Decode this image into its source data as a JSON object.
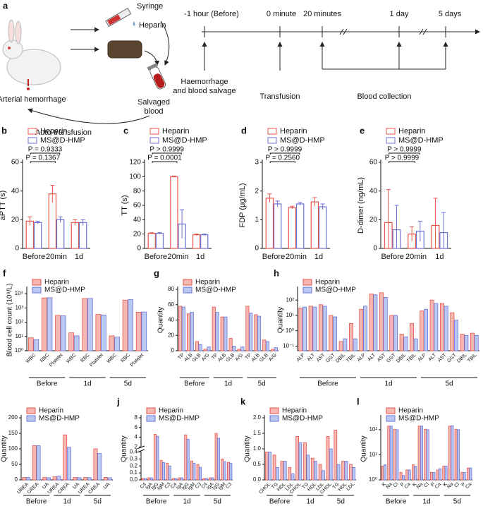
{
  "schematic": {
    "panel": "a",
    "syringe": "Syringe",
    "heparin": "Heparin",
    "arterial_hemorrhage": "Arterial hemorrhage",
    "salvaged_blood": [
      "Salvaged",
      "blood"
    ],
    "auto_transfusion": "Auto-transfusion",
    "timeline": [
      "-1 hour (Before)",
      "0 minute",
      "20 minutes",
      "1 day",
      "5 days"
    ],
    "haemorrhage": [
      "Haemorrhage",
      "and blood salvage"
    ],
    "transfusion": "Transfusion",
    "blood_collection": "Blood collection"
  },
  "chart_data": [
    {
      "type": "bar",
      "panel": "b",
      "ylabel": "aPTT (s)",
      "categories": [
        "Before",
        "20min",
        "1d"
      ],
      "series": [
        {
          "name": "Heparin",
          "color": "#e8544a",
          "fill": "#ffffff",
          "values": [
            19,
            38,
            18
          ],
          "errors": [
            3,
            6,
            2
          ]
        },
        {
          "name": "MS@D-HMP",
          "color": "#6c72d6",
          "fill": "#ffffff",
          "values": [
            18,
            20,
            18
          ],
          "errors": [
            1,
            2,
            2
          ]
        }
      ],
      "ylim": [
        0,
        60
      ],
      "yticks": [
        0,
        20,
        40,
        60
      ],
      "annotations": [
        "P = 0.9333",
        "P = 0.1367"
      ]
    },
    {
      "type": "bar",
      "panel": "c",
      "ylabel": "TT (s)",
      "categories": [
        "Before",
        "20min",
        "1d"
      ],
      "series": [
        {
          "name": "Heparin",
          "color": "#e8544a",
          "fill": "#ffffff",
          "values": [
            21,
            100,
            19
          ],
          "errors": [
            1,
            1,
            1
          ]
        },
        {
          "name": "MS@D-HMP",
          "color": "#6c72d6",
          "fill": "#ffffff",
          "values": [
            21,
            34,
            19
          ],
          "errors": [
            1,
            20,
            1
          ]
        }
      ],
      "ylim": [
        0,
        120
      ],
      "yticks": [
        0,
        20,
        40,
        60,
        80,
        100,
        120
      ],
      "annotations": [
        "P > 0.9999",
        "P = 0.0001"
      ]
    },
    {
      "type": "bar",
      "panel": "d",
      "ylabel": "FDP (μg/mL)",
      "categories": [
        "Before",
        "20min",
        "1d"
      ],
      "series": [
        {
          "name": "Heparin",
          "color": "#e8544a",
          "fill": "#ffffff",
          "values": [
            1.75,
            1.42,
            1.62
          ],
          "errors": [
            0.15,
            0.05,
            0.15
          ]
        },
        {
          "name": "MS@D-HMP",
          "color": "#6c72d6",
          "fill": "#ffffff",
          "values": [
            1.55,
            1.55,
            1.45
          ],
          "errors": [
            0.1,
            0.05,
            0.1
          ]
        }
      ],
      "ylim": [
        0,
        3
      ],
      "yticks": [
        0,
        1,
        2,
        3
      ],
      "annotations": [
        "P > 0.9999",
        "P = 0.2560"
      ]
    },
    {
      "type": "bar",
      "panel": "e",
      "ylabel": "D-dimer (ng/mL)",
      "categories": [
        "Before",
        "20min",
        "1d"
      ],
      "series": [
        {
          "name": "Heparin",
          "color": "#e8544a",
          "fill": "#ffffff",
          "values": [
            18,
            10,
            16
          ],
          "errors": [
            23,
            5,
            19
          ]
        },
        {
          "name": "MS@D-HMP",
          "color": "#6c72d6",
          "fill": "#ffffff",
          "values": [
            13,
            12,
            11
          ],
          "errors": [
            17,
            7,
            14
          ]
        }
      ],
      "ylim": [
        0,
        60
      ],
      "yticks": [
        0,
        20,
        40,
        60
      ],
      "annotations": [
        "P > 0.9999",
        "P > 0.9999"
      ]
    },
    {
      "type": "bar",
      "panel": "f",
      "ylabel": "Blood cell count (10⁹/L)",
      "log": true,
      "groups": [
        "Before",
        "1d",
        "5d"
      ],
      "categories": [
        "WBC",
        "RBC",
        "Platelet",
        "WBC",
        "RBC",
        "Platelet",
        "WBC",
        "RBC",
        "Platelet"
      ],
      "series": [
        {
          "name": "Heparin",
          "color": "#e8544a",
          "fill": "#f6b8b2",
          "values": [
            8,
            5000,
            300,
            18,
            4500,
            350,
            11,
            3500,
            500
          ]
        },
        {
          "name": "MS@D-HMP",
          "color": "#6c72d6",
          "fill": "#b9c9f2",
          "values": [
            6,
            5200,
            280,
            11,
            4600,
            320,
            9,
            3800,
            520
          ]
        }
      ],
      "ylim": [
        1,
        20000
      ],
      "yticks": [
        {
          "value": 1,
          "label": "10⁰"
        },
        {
          "value": 10,
          "label": "10¹"
        },
        {
          "value": 100,
          "label": "10²"
        },
        {
          "value": 1000,
          "label": "10³"
        },
        {
          "value": 10000,
          "label": "10⁴"
        }
      ]
    },
    {
      "type": "bar",
      "panel": "g",
      "ylabel": "Quantity",
      "groups": [
        "Before",
        "1d",
        "5d"
      ],
      "categories": [
        "TP",
        "ALB",
        "GLB",
        "A/G",
        "TP",
        "ALB",
        "GLB",
        "A/G",
        "TP",
        "ALB",
        "GLB",
        "A/G"
      ],
      "series": [
        {
          "name": "Heparin",
          "color": "#e8544a",
          "fill": "#f6b8b2",
          "values": [
            58,
            48,
            12,
            2,
            57,
            44,
            16,
            2,
            58,
            47,
            14,
            2
          ]
        },
        {
          "name": "MS@D-HMP",
          "color": "#6c72d6",
          "fill": "#b9c9f2",
          "values": [
            57,
            50,
            8,
            5,
            50,
            44,
            6,
            5,
            49,
            45,
            12,
            4
          ]
        }
      ],
      "ylim": [
        0,
        80
      ],
      "yticks": [
        0,
        20,
        40,
        60,
        80
      ]
    },
    {
      "type": "bar",
      "panel": "h",
      "ylabel": "Quantity",
      "log": true,
      "groups": [
        "Before",
        "1d",
        "5d"
      ],
      "categories": [
        "ALP",
        "ALT",
        "AST",
        "GGT",
        "DBIL",
        "TBIL",
        "ALP",
        "ALT",
        "AST",
        "GGT",
        "DBIL",
        "TBIL",
        "ALP",
        "ALT",
        "AST",
        "GGT",
        "DBIL",
        "TBIL"
      ],
      "series": [
        {
          "name": "Heparin",
          "color": "#e8544a",
          "fill": "#f6b8b2",
          "values": [
            30,
            40,
            50,
            10,
            0.2,
            3,
            25,
            250,
            300,
            10,
            0.6,
            3,
            20,
            100,
            60,
            15,
            0.6,
            0.7
          ]
        },
        {
          "name": "MS@D-HMP",
          "color": "#6c72d6",
          "fill": "#b9c9f2",
          "values": [
            35,
            35,
            40,
            8,
            0.3,
            0.3,
            40,
            220,
            150,
            10,
            0.4,
            0.3,
            25,
            60,
            40,
            5,
            0.5,
            0.5
          ]
        }
      ],
      "ylim": [
        0.05,
        500
      ],
      "yticks": [
        {
          "value": 0.1,
          "label": "10⁻¹"
        },
        {
          "value": 1,
          "label": "10⁰"
        },
        {
          "value": 10,
          "label": "10¹"
        },
        {
          "value": 100,
          "label": "10²"
        }
      ]
    },
    {
      "type": "bar",
      "panel": "i",
      "ylabel": "Quantity",
      "groups": [
        "Before",
        "1d",
        "5d"
      ],
      "categories": [
        "UREA",
        "CREA",
        "UA",
        "UREA",
        "CREA",
        "UA",
        "UREA",
        "CREA",
        "UA"
      ],
      "series": [
        {
          "name": "Heparin",
          "color": "#e8544a",
          "fill": "#f6b8b2",
          "values": [
            8,
            110,
            8,
            10,
            145,
            8,
            8,
            100,
            8
          ]
        },
        {
          "name": "MS@D-HMP",
          "color": "#6c72d6",
          "fill": "#b9c9f2",
          "values": [
            8,
            110,
            7,
            12,
            105,
            7,
            7,
            85,
            7
          ]
        }
      ],
      "ylim": [
        0,
        200
      ],
      "yticks": [
        0,
        50,
        100,
        150,
        200
      ]
    },
    {
      "type": "bar",
      "panel": "j",
      "ylabel": "Quantity",
      "ybreak": [
        0.4,
        2
      ],
      "groups": [
        "Before",
        "1d",
        "5d"
      ],
      "categories": [
        "C4",
        "IgA",
        "IgG",
        "IgM",
        "C3",
        "C4",
        "IgA",
        "IgG",
        "IgM",
        "C3",
        "C4",
        "IgA",
        "IgG",
        "IgM",
        "C3"
      ],
      "series": [
        {
          "name": "Heparin",
          "color": "#e8544a",
          "fill": "#f6b8b2",
          "values": [
            0.02,
            0.03,
            4.6,
            0.28,
            0.24,
            0.02,
            0.03,
            4.5,
            0.27,
            0.22,
            0.02,
            0.03,
            4.8,
            0.3,
            0.25
          ]
        },
        {
          "name": "MS@D-HMP",
          "color": "#6c72d6",
          "fill": "#b9c9f2",
          "values": [
            0.02,
            0.03,
            4.2,
            0.25,
            0.2,
            0.02,
            0.03,
            3.6,
            0.24,
            0.18,
            0.02,
            0.03,
            3.8,
            0.26,
            0.24
          ]
        }
      ],
      "ylim": [
        0,
        8
      ],
      "yticks": [
        {
          "value": 0,
          "label": "0.0"
        },
        0.1,
        0.2,
        0.3,
        0.4,
        2,
        4,
        6,
        8
      ]
    },
    {
      "type": "bar",
      "panel": "k",
      "ylabel": "Quantity",
      "groups": [
        "Before",
        "1d",
        "5d"
      ],
      "categories": [
        "CHOL",
        "TG",
        "HDL",
        "LDL",
        "CHOL",
        "TG",
        "HDL",
        "LDL",
        "CHOL",
        "TG",
        "HDL",
        "LDL"
      ],
      "series": [
        {
          "name": "Heparin",
          "color": "#e8544a",
          "fill": "#f6b8b2",
          "values": [
            0.9,
            0.8,
            0.6,
            0.4,
            1.4,
            1.2,
            0.7,
            0.5,
            1.4,
            1.6,
            0.6,
            0.5
          ]
        },
        {
          "name": "MS@D-HMP",
          "color": "#6c72d6",
          "fill": "#b9c9f2",
          "values": [
            0.9,
            0.4,
            0.6,
            0.2,
            1.2,
            0.8,
            0.6,
            0.3,
            1.0,
            0.5,
            0.6,
            0.4
          ]
        }
      ],
      "ylim": [
        0,
        2
      ],
      "yticks": [
        {
          "value": 0,
          "label": "0.0"
        },
        0.5,
        {
          "value": 1,
          "label": "1.0"
        },
        1.5,
        {
          "value": 2,
          "label": "2.0"
        }
      ]
    },
    {
      "type": "bar",
      "panel": "l",
      "ylabel": "Quantity",
      "log": true,
      "groups": [
        "Before",
        "1d",
        "5d"
      ],
      "categories": [
        "K",
        "Na",
        "Cl",
        "P",
        "Ca",
        "K",
        "Na",
        "Cl",
        "P",
        "Ca",
        "K",
        "Na",
        "Cl",
        "P",
        "Ca"
      ],
      "series": [
        {
          "name": "Heparin",
          "color": "#e8544a",
          "fill": "#f6b8b2",
          "values": [
            3.5,
            140,
            105,
            2,
            2.5,
            4,
            140,
            105,
            2,
            2.5,
            3.5,
            140,
            105,
            2,
            3
          ]
        },
        {
          "name": "MS@D-HMP",
          "color": "#6c72d6",
          "fill": "#b9c9f2",
          "values": [
            4,
            140,
            100,
            1.5,
            2.5,
            3.5,
            140,
            100,
            2,
            2.8,
            3.5,
            145,
            100,
            2,
            3
          ]
        }
      ],
      "ylim": [
        1,
        300
      ],
      "yticks": [
        {
          "value": 1,
          "label": "10⁰"
        },
        {
          "value": 10,
          "label": "10¹"
        },
        {
          "value": 100,
          "label": "10²"
        }
      ]
    }
  ]
}
